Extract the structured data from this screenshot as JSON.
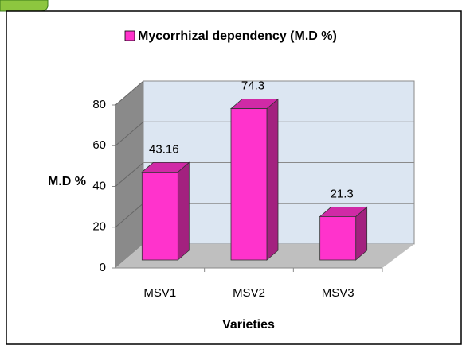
{
  "chart_data": {
    "type": "bar3d",
    "title": "Mycorrhizal dependency (M.D %)",
    "categories": [
      "MSV1",
      "MSV2",
      "MSV3"
    ],
    "values": [
      43.16,
      74.3,
      21.3
    ],
    "color": "#ff33cc",
    "ylim": [
      0,
      80
    ],
    "yticks": [
      0,
      20,
      40,
      60,
      80
    ],
    "grid": true,
    "y_label": "M.D %",
    "x_label": "Varieties"
  }
}
